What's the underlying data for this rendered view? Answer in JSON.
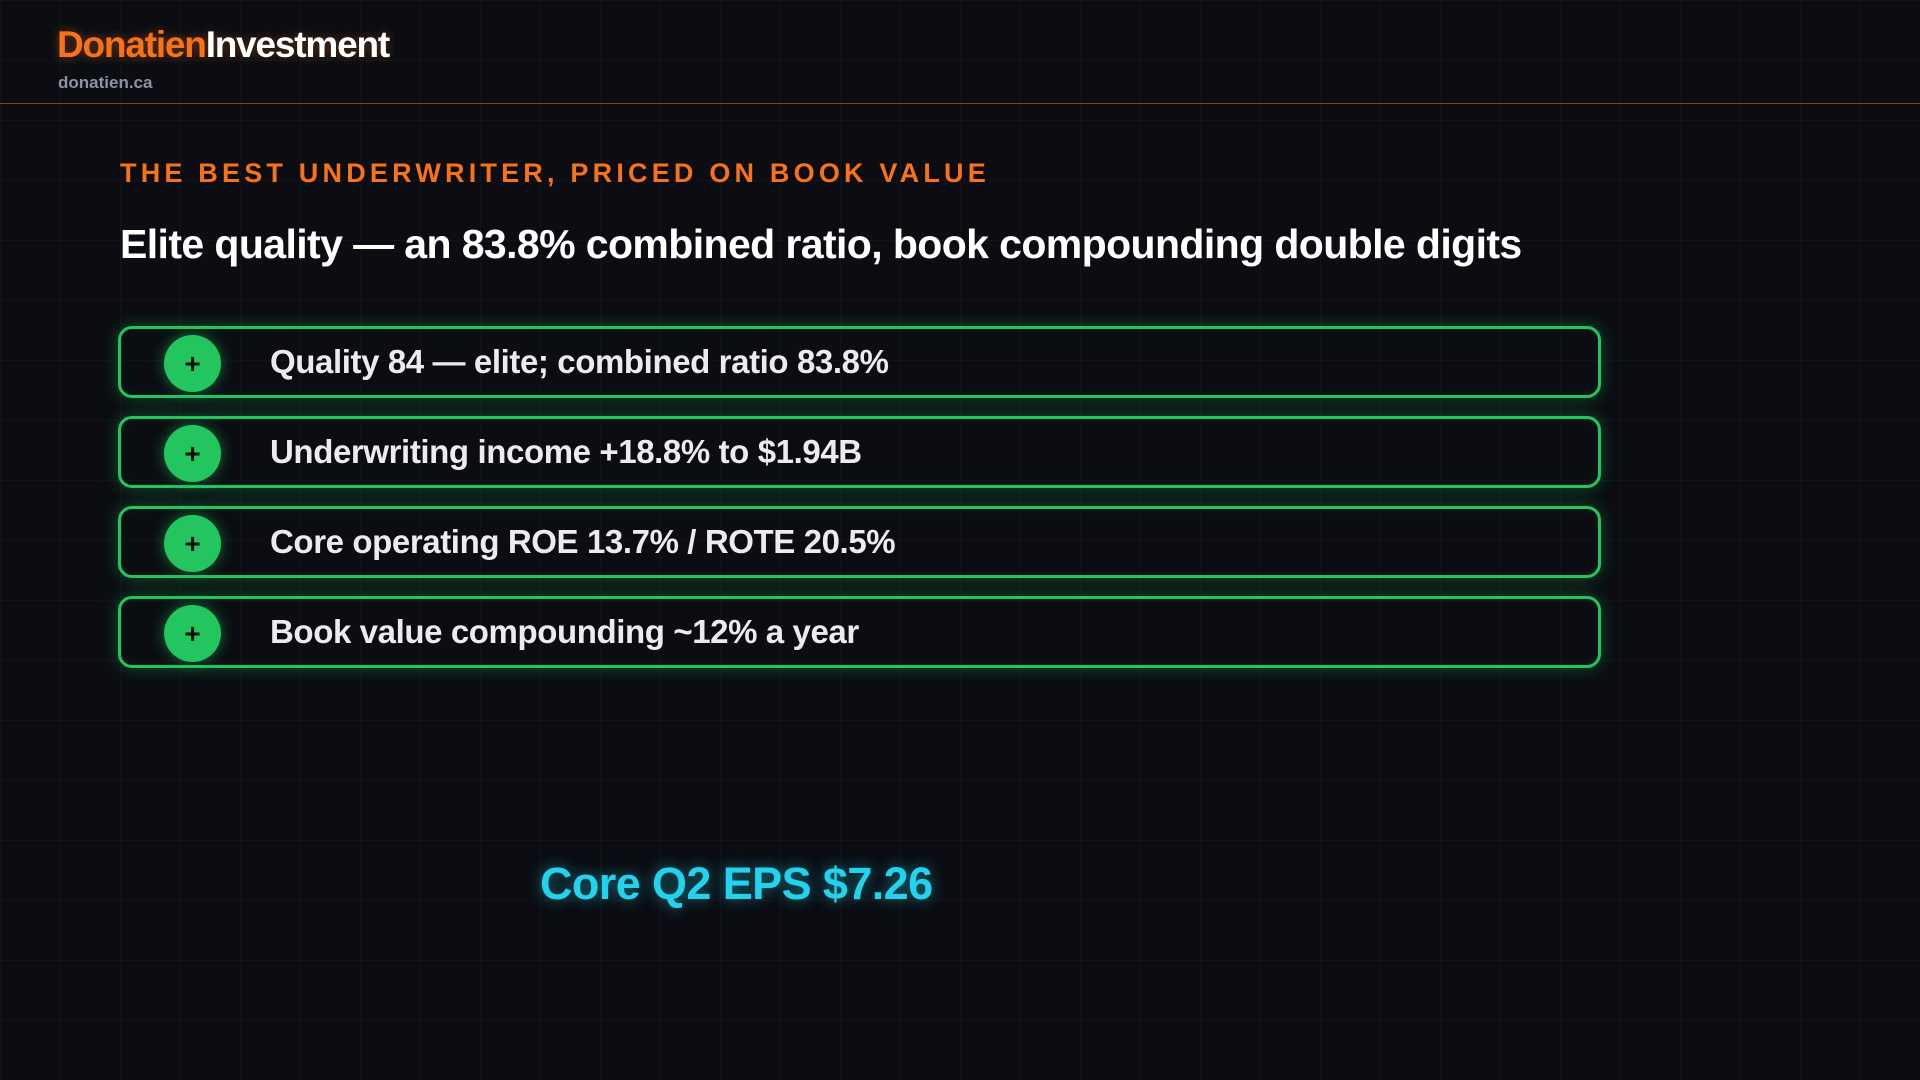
{
  "header": {
    "brand_primary": "Donatien",
    "brand_secondary": "Investment",
    "domain": "donatien.ca"
  },
  "slide": {
    "eyebrow": "THE BEST UNDERWRITER, PRICED ON BOOK VALUE",
    "headline": "Elite quality — an 83.8% combined ratio, book compounding double digits",
    "points": [
      {
        "icon": "+",
        "text": "Quality 84 — elite; combined ratio 83.8%"
      },
      {
        "icon": "+",
        "text": "Underwriting income +18.8% to $1.94B"
      },
      {
        "icon": "+",
        "text": "Core operating ROE 13.7% / ROTE 20.5%"
      },
      {
        "icon": "+",
        "text": "Book value compounding ~12% a year"
      }
    ],
    "footer_stat": "Core Q2 EPS $7.26"
  },
  "colors": {
    "background": "#0b0d12",
    "accent_orange": "#f97316",
    "positive_green": "#22c55e",
    "highlight_cyan": "#22d3ee"
  }
}
